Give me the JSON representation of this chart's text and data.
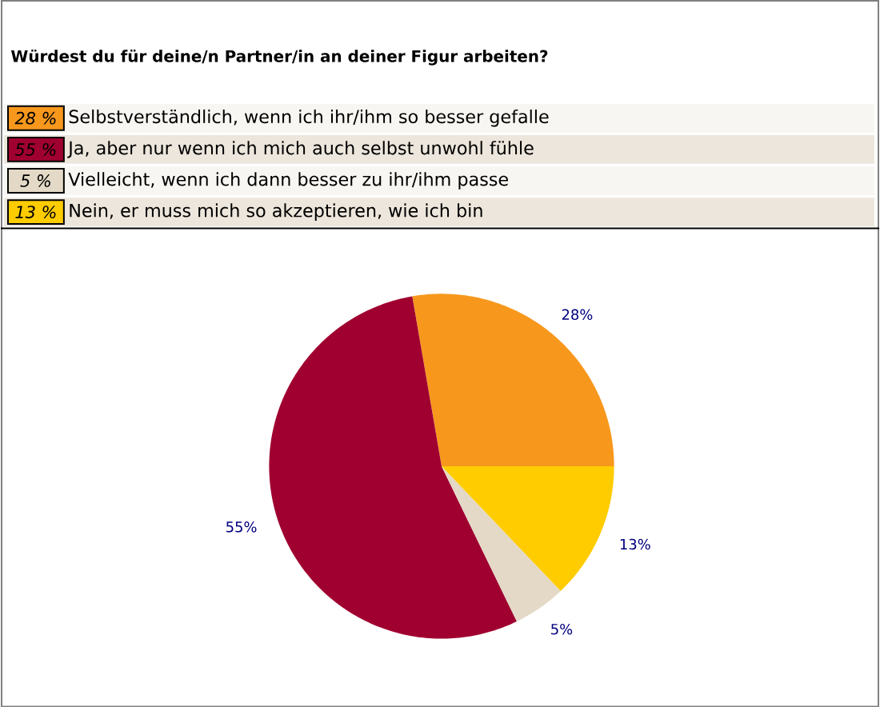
{
  "chart_data": {
    "type": "pie",
    "title": "Würdest du für deine/n Partner/in an deiner Figur arbeiten?",
    "categories": [
      "Selbstverständlich, wenn ich ihr/ihm so besser gefalle",
      "Ja, aber nur wenn ich mich auch selbst unwohl fühle",
      "Vielleicht, wenn ich dann besser zu ihr/ihm passe",
      "Nein, er muss mich so akzeptieren, wie ich bin"
    ],
    "values": [
      28,
      55,
      5,
      13
    ],
    "colors": [
      "#f7981d",
      "#a00030",
      "#e3d9c6",
      "#ffcc00"
    ],
    "value_labels": [
      "28%",
      "55%",
      "5%",
      "13%"
    ],
    "annotations": [
      "28 %",
      "55 %",
      "5 %",
      "13 %"
    ],
    "legend": "top"
  }
}
